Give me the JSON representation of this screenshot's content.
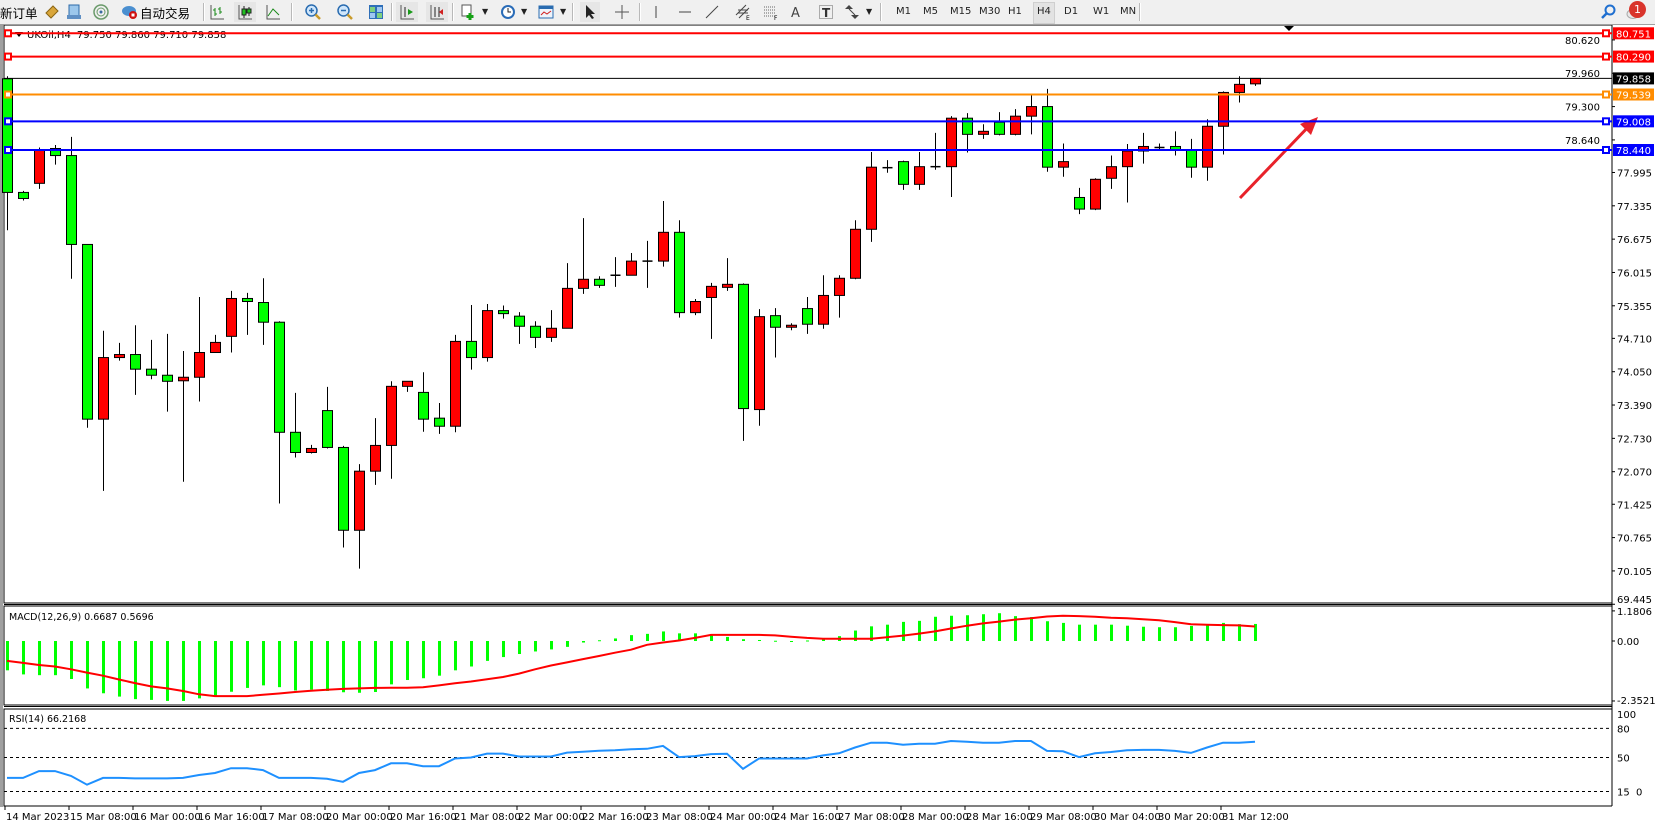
{
  "toolbar": {
    "new_order": "新订单",
    "auto_trading": "自动交易",
    "icons": [
      "market-watch-icon",
      "data-window-icon",
      "navigator-icon",
      "auto-trading-icon",
      "bar-chart-icon",
      "candlestick-icon",
      "line-chart-icon",
      "zoom-in-icon",
      "zoom-out-icon",
      "tile-windows-icon",
      "auto-scroll-icon",
      "chart-shift-icon",
      "new-chart-icon",
      "periods-icon",
      "templates-icon",
      "cursor-icon",
      "crosshair-icon",
      "vertical-line-icon",
      "horizontal-line-icon",
      "trendline-icon",
      "equidistant-channel-icon",
      "fibonacci-icon",
      "text-icon",
      "text-label-icon",
      "arrows-icon",
      "search-icon",
      "notifications-icon"
    ],
    "timeframes": [
      "M1",
      "M5",
      "M15",
      "M30",
      "H1",
      "H4",
      "D1",
      "W1",
      "MN"
    ],
    "active_timeframe": "H4",
    "notification_count": "1"
  },
  "chart": {
    "symbol": "UKOil,H4",
    "ohlc_text": "79.750 79.860 79.710 79.858",
    "price_axis_labels": [
      "80.620",
      "79.960",
      "79.300",
      "78.640",
      "77.995",
      "77.335",
      "76.675",
      "76.015",
      "75.355",
      "74.710",
      "74.050",
      "73.390",
      "72.730",
      "72.070",
      "71.425",
      "70.765",
      "70.105",
      "69.445"
    ],
    "time_axis_labels": [
      "14 Mar 2023",
      "15 Mar 08:00",
      "16 Mar 00:00",
      "16 Mar 16:00",
      "17 Mar 08:00",
      "20 Mar 00:00",
      "20 Mar 16:00",
      "21 Mar 08:00",
      "22 Mar 00:00",
      "22 Mar 16:00",
      "23 Mar 08:00",
      "24 Mar 00:00",
      "24 Mar 16:00",
      "27 Mar 08:00",
      "28 Mar 00:00",
      "28 Mar 16:00",
      "29 Mar 08:00",
      "30 Mar 04:00",
      "30 Mar 20:00",
      "31 Mar 12:00"
    ],
    "horizontal_lines": [
      {
        "price": "80.751",
        "color": "#ff0000"
      },
      {
        "price": "80.290",
        "color": "#ff0000"
      },
      {
        "price": "79.539",
        "color": "#ff8c00"
      },
      {
        "price": "79.008",
        "color": "#0000ff"
      },
      {
        "price": "78.440",
        "color": "#0000ff"
      }
    ],
    "bid_line": {
      "price": "79.858",
      "color": "#000000"
    },
    "colors": {
      "bull": "#ff0000",
      "bear": "#00ff00",
      "arrow": "#e8222a",
      "rsi": "#1e90ff",
      "macd_hist": "#00ff00",
      "macd_signal": "#ff0000"
    }
  },
  "macd": {
    "label": "MACD(12,26,9) 0.6687 0.5696",
    "axis_labels": [
      "1.1806",
      "0.00",
      "-2.3521"
    ]
  },
  "rsi": {
    "label": "RSI(14) 66.2168",
    "axis_labels": [
      "100",
      "80",
      "50",
      "15",
      "0"
    ]
  },
  "chart_data": {
    "type": "candlestick",
    "ylim": [
      69.445,
      80.751
    ],
    "ohlc": [
      [
        79.85,
        79.9,
        76.85,
        77.6
      ],
      [
        77.6,
        77.63,
        77.44,
        77.48
      ],
      [
        77.78,
        78.49,
        77.67,
        78.44
      ],
      [
        78.47,
        78.54,
        78.15,
        78.33
      ],
      [
        78.33,
        78.7,
        75.89,
        76.57
      ],
      [
        76.57,
        76.57,
        72.94,
        73.11
      ],
      [
        73.11,
        74.86,
        71.69,
        74.33
      ],
      [
        74.33,
        74.62,
        74.27,
        74.39
      ],
      [
        74.39,
        74.97,
        73.59,
        74.1
      ],
      [
        74.1,
        74.68,
        73.9,
        73.98
      ],
      [
        73.98,
        74.8,
        73.26,
        73.86
      ],
      [
        73.87,
        74.46,
        71.87,
        73.94
      ],
      [
        73.94,
        75.53,
        73.46,
        74.43
      ],
      [
        74.43,
        74.78,
        74.43,
        74.63
      ],
      [
        74.75,
        75.65,
        74.43,
        75.5
      ],
      [
        75.5,
        75.61,
        74.78,
        75.44
      ],
      [
        75.42,
        75.9,
        74.58,
        75.03
      ],
      [
        75.03,
        75.05,
        71.44,
        72.85
      ],
      [
        72.85,
        73.63,
        72.35,
        72.45
      ],
      [
        72.45,
        72.6,
        72.43,
        72.53
      ],
      [
        73.28,
        73.75,
        72.53,
        72.55
      ],
      [
        72.55,
        72.58,
        70.57,
        70.91
      ],
      [
        70.91,
        72.22,
        70.15,
        72.08
      ],
      [
        72.08,
        73.13,
        71.81,
        72.59
      ],
      [
        72.59,
        73.86,
        71.93,
        73.76
      ],
      [
        73.76,
        73.86,
        73.65,
        73.86
      ],
      [
        73.64,
        74.04,
        72.86,
        73.11
      ],
      [
        73.13,
        73.43,
        72.82,
        72.97
      ],
      [
        72.97,
        74.78,
        72.85,
        74.65
      ],
      [
        74.65,
        75.37,
        74.09,
        74.33
      ],
      [
        74.33,
        75.39,
        74.25,
        75.26
      ],
      [
        75.26,
        75.36,
        75.1,
        75.2
      ],
      [
        75.15,
        75.23,
        74.6,
        74.95
      ],
      [
        74.95,
        75.05,
        74.52,
        74.73
      ],
      [
        74.73,
        75.27,
        74.64,
        74.91
      ],
      [
        74.91,
        76.2,
        74.91,
        75.7
      ],
      [
        75.7,
        77.09,
        75.59,
        75.88
      ],
      [
        75.88,
        75.94,
        75.71,
        75.76
      ],
      [
        75.96,
        76.32,
        75.73,
        75.96
      ],
      [
        75.96,
        76.4,
        75.96,
        76.24
      ],
      [
        76.24,
        76.64,
        75.71,
        76.24
      ],
      [
        76.24,
        77.43,
        76.13,
        76.81
      ],
      [
        76.81,
        77.05,
        75.12,
        75.22
      ],
      [
        75.22,
        75.49,
        75.17,
        75.44
      ],
      [
        75.52,
        75.81,
        74.7,
        75.74
      ],
      [
        75.72,
        76.3,
        75.65,
        75.78
      ],
      [
        75.78,
        75.8,
        72.68,
        73.32
      ],
      [
        73.3,
        75.29,
        72.98,
        75.14
      ],
      [
        75.16,
        75.31,
        74.33,
        74.93
      ],
      [
        74.93,
        75.01,
        74.87,
        74.97
      ],
      [
        75.3,
        75.53,
        74.8,
        74.99
      ],
      [
        74.99,
        75.96,
        74.9,
        75.56
      ],
      [
        75.56,
        75.96,
        75.12,
        75.9
      ],
      [
        75.9,
        77.05,
        75.88,
        76.87
      ],
      [
        76.87,
        78.4,
        76.62,
        78.1
      ],
      [
        78.09,
        78.24,
        77.99,
        78.09
      ],
      [
        78.21,
        78.23,
        77.65,
        77.76
      ],
      [
        77.76,
        78.4,
        77.65,
        78.11
      ],
      [
        78.11,
        78.78,
        78.05,
        78.11
      ],
      [
        78.11,
        79.11,
        77.51,
        79.07
      ],
      [
        79.07,
        79.17,
        78.39,
        78.75
      ],
      [
        78.75,
        78.95,
        78.66,
        78.81
      ],
      [
        78.99,
        79.19,
        78.73,
        78.75
      ],
      [
        78.75,
        79.25,
        78.73,
        79.11
      ],
      [
        79.11,
        79.53,
        78.75,
        79.3
      ],
      [
        79.3,
        79.65,
        78.01,
        78.1
      ],
      [
        78.1,
        78.57,
        77.91,
        78.21
      ],
      [
        77.5,
        77.69,
        77.17,
        77.27
      ],
      [
        77.27,
        77.88,
        77.25,
        77.86
      ],
      [
        77.88,
        78.33,
        77.67,
        78.11
      ],
      [
        78.11,
        78.56,
        77.4,
        78.42
      ],
      [
        78.42,
        78.78,
        78.17,
        78.51
      ],
      [
        78.49,
        78.57,
        78.45,
        78.49
      ],
      [
        78.51,
        78.81,
        78.33,
        78.45
      ],
      [
        78.45,
        78.66,
        77.89,
        78.1
      ],
      [
        78.1,
        79.05,
        77.83,
        78.91
      ],
      [
        78.91,
        79.6,
        78.35,
        79.58
      ],
      [
        79.58,
        79.9,
        79.38,
        79.74
      ],
      [
        79.75,
        79.86,
        79.71,
        79.858
      ]
    ],
    "macd_histogram": [
      -1.15,
      -1.31,
      -1.34,
      -1.34,
      -1.49,
      -1.86,
      -2.05,
      -2.18,
      -2.28,
      -2.31,
      -2.35,
      -2.35,
      -2.25,
      -2.18,
      -1.99,
      -1.84,
      -1.74,
      -1.81,
      -1.94,
      -1.91,
      -1.96,
      -2.01,
      -2.03,
      -2.0,
      -1.7,
      -1.53,
      -1.46,
      -1.36,
      -1.15,
      -1.0,
      -0.78,
      -0.63,
      -0.51,
      -0.41,
      -0.33,
      -0.23,
      -0.06,
      0.03,
      0.1,
      0.23,
      0.28,
      0.375,
      0.3,
      0.3,
      0.24,
      0.16,
      0.07,
      0.04,
      0.01,
      -0.01,
      0.02,
      0.09,
      0.19,
      0.41,
      0.575,
      0.64,
      0.75,
      0.79,
      0.95,
      0.99,
      1.01,
      1.05,
      1.09,
      0.975,
      0.94,
      0.775,
      0.71,
      0.64,
      0.64,
      0.64,
      0.6,
      0.56,
      0.54,
      0.54,
      0.59,
      0.66,
      0.71,
      0.66,
      0.6687
    ],
    "macd_signal": [
      -0.78,
      -0.86,
      -0.94,
      -1.0,
      -1.11,
      -1.24,
      -1.36,
      -1.51,
      -1.65,
      -1.78,
      -1.86,
      -1.96,
      -2.09,
      -2.16,
      -2.16,
      -2.16,
      -2.11,
      -2.06,
      -2.0,
      -1.95,
      -1.91,
      -1.88,
      -1.86,
      -1.84,
      -1.83,
      -1.83,
      -1.81,
      -1.74,
      -1.66,
      -1.59,
      -1.5,
      -1.41,
      -1.28,
      -1.11,
      -0.96,
      -0.84,
      -0.71,
      -0.59,
      -0.46,
      -0.34,
      -0.15,
      -0.06,
      0.02,
      0.12,
      0.24,
      0.24,
      0.24,
      0.24,
      0.22,
      0.17,
      0.12,
      0.09,
      0.09,
      0.09,
      0.09,
      0.15,
      0.21,
      0.29,
      0.375,
      0.49,
      0.6,
      0.69,
      0.76,
      0.84,
      0.89,
      0.96,
      0.99,
      0.975,
      0.95,
      0.91,
      0.89,
      0.85,
      0.81,
      0.74,
      0.66,
      0.64,
      0.625,
      0.61,
      0.5696
    ],
    "macd_ylim": [
      -2.3521,
      1.1806
    ],
    "rsi": [
      29,
      29,
      36,
      36,
      31,
      22,
      29,
      29,
      28.5,
      28.5,
      28.5,
      29,
      32,
      34,
      39,
      39,
      37,
      29,
      29,
      29,
      28,
      25,
      34,
      37,
      44,
      44,
      41,
      41,
      49,
      50,
      54,
      54,
      51,
      51,
      51,
      55,
      56,
      57,
      57.5,
      58.5,
      59,
      62,
      50.4,
      51.4,
      53.5,
      53.9,
      38.4,
      49,
      49,
      49,
      49,
      52.2,
      54.3,
      60.3,
      65.3,
      65.3,
      63.2,
      64.2,
      64.2,
      67,
      66.3,
      65.3,
      65.3,
      67,
      67,
      56.8,
      56.4,
      50.4,
      54.3,
      55.7,
      57.5,
      57.8,
      57.8,
      56.8,
      54.7,
      60.3,
      65.3,
      65.3,
      66.2168
    ],
    "rsi_levels": [
      80,
      50,
      15
    ],
    "rsi_ylim": [
      0,
      100
    ]
  }
}
